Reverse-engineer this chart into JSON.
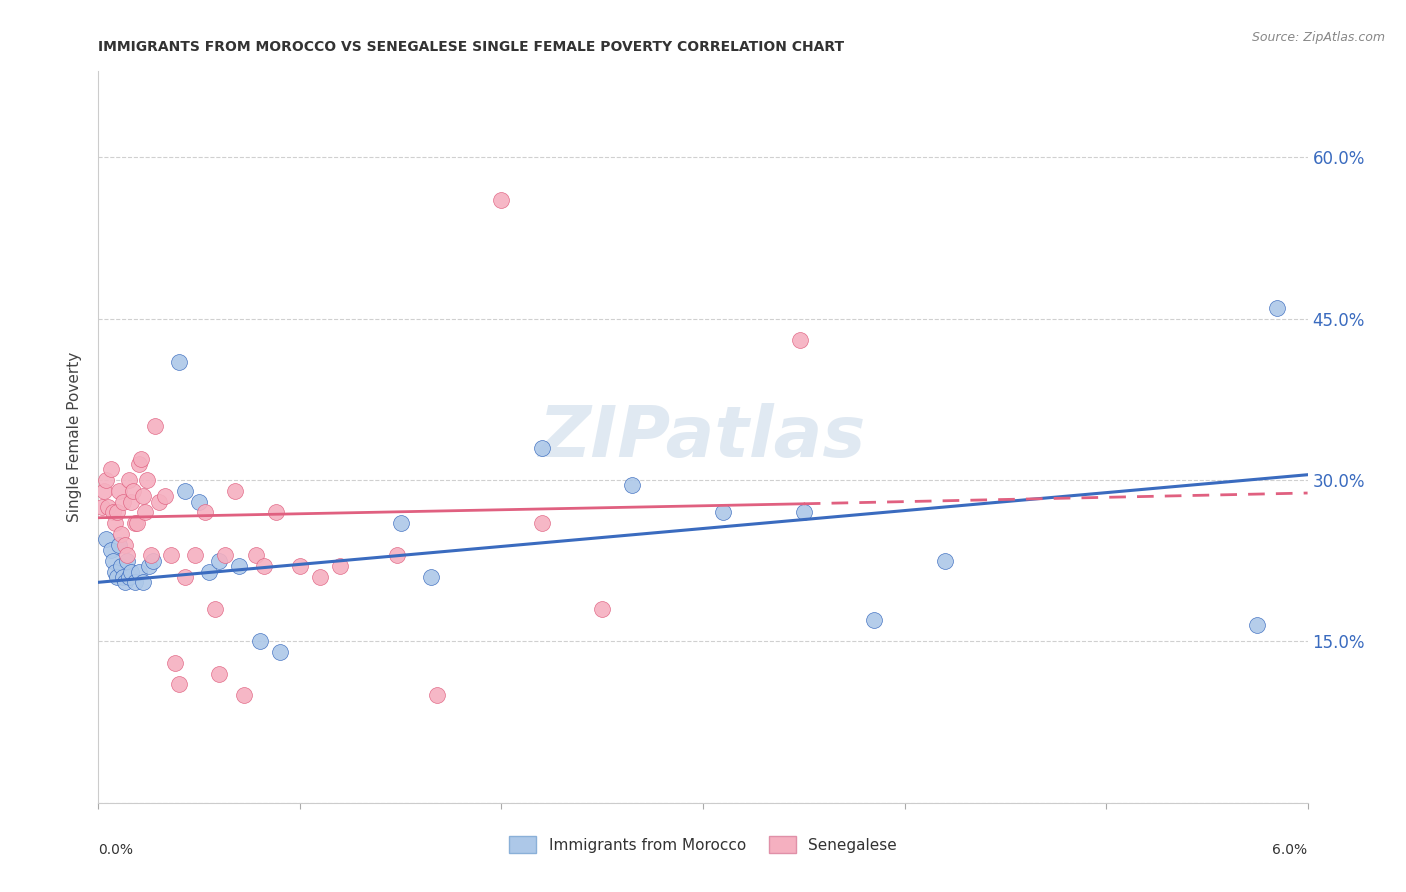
{
  "title": "IMMIGRANTS FROM MOROCCO VS SENEGALESE SINGLE FEMALE POVERTY CORRELATION CHART",
  "source": "Source: ZipAtlas.com",
  "ylabel": "Single Female Poverty",
  "xlim": [
    0.0,
    6.0
  ],
  "ylim": [
    0.0,
    68.0
  ],
  "yticks": [
    0,
    15,
    30,
    45,
    60
  ],
  "ytick_labels": [
    "",
    "15.0%",
    "30.0%",
    "45.0%",
    "60.0%"
  ],
  "bottom_legend1": "Immigrants from Morocco",
  "bottom_legend2": "Senegalese",
  "blue_color": "#adc8e8",
  "pink_color": "#f5b0c0",
  "blue_line_color": "#3a6bbf",
  "pink_line_color": "#e06080",
  "watermark": "ZIPatlas",
  "title_color": "#333333",
  "blue_scatter": [
    [
      0.04,
      24.5
    ],
    [
      0.06,
      23.5
    ],
    [
      0.07,
      22.5
    ],
    [
      0.08,
      21.5
    ],
    [
      0.09,
      21.0
    ],
    [
      0.1,
      24.0
    ],
    [
      0.11,
      22.0
    ],
    [
      0.12,
      21.0
    ],
    [
      0.13,
      20.5
    ],
    [
      0.14,
      22.5
    ],
    [
      0.15,
      21.0
    ],
    [
      0.16,
      21.5
    ],
    [
      0.18,
      20.5
    ],
    [
      0.2,
      21.5
    ],
    [
      0.22,
      20.5
    ],
    [
      0.25,
      22.0
    ],
    [
      0.27,
      22.5
    ],
    [
      0.4,
      41.0
    ],
    [
      0.43,
      29.0
    ],
    [
      0.5,
      28.0
    ],
    [
      0.55,
      21.5
    ],
    [
      0.6,
      22.5
    ],
    [
      0.7,
      22.0
    ],
    [
      0.8,
      15.0
    ],
    [
      0.9,
      14.0
    ],
    [
      1.5,
      26.0
    ],
    [
      1.65,
      21.0
    ],
    [
      2.2,
      33.0
    ],
    [
      2.65,
      29.5
    ],
    [
      3.1,
      27.0
    ],
    [
      3.5,
      27.0
    ],
    [
      3.85,
      17.0
    ],
    [
      4.2,
      22.5
    ],
    [
      5.85,
      46.0
    ],
    [
      5.75,
      16.5
    ]
  ],
  "pink_scatter": [
    [
      0.02,
      27.5
    ],
    [
      0.03,
      29.0
    ],
    [
      0.04,
      30.0
    ],
    [
      0.05,
      27.5
    ],
    [
      0.06,
      31.0
    ],
    [
      0.07,
      27.0
    ],
    [
      0.08,
      26.0
    ],
    [
      0.09,
      27.0
    ],
    [
      0.1,
      29.0
    ],
    [
      0.11,
      25.0
    ],
    [
      0.12,
      28.0
    ],
    [
      0.13,
      24.0
    ],
    [
      0.14,
      23.0
    ],
    [
      0.15,
      30.0
    ],
    [
      0.16,
      28.0
    ],
    [
      0.17,
      29.0
    ],
    [
      0.18,
      26.0
    ],
    [
      0.19,
      26.0
    ],
    [
      0.2,
      31.5
    ],
    [
      0.21,
      32.0
    ],
    [
      0.22,
      28.5
    ],
    [
      0.23,
      27.0
    ],
    [
      0.24,
      30.0
    ],
    [
      0.26,
      23.0
    ],
    [
      0.28,
      35.0
    ],
    [
      0.3,
      28.0
    ],
    [
      0.33,
      28.5
    ],
    [
      0.36,
      23.0
    ],
    [
      0.38,
      13.0
    ],
    [
      0.4,
      11.0
    ],
    [
      0.43,
      21.0
    ],
    [
      0.48,
      23.0
    ],
    [
      0.53,
      27.0
    ],
    [
      0.58,
      18.0
    ],
    [
      0.6,
      12.0
    ],
    [
      0.63,
      23.0
    ],
    [
      0.68,
      29.0
    ],
    [
      0.72,
      10.0
    ],
    [
      0.78,
      23.0
    ],
    [
      0.82,
      22.0
    ],
    [
      0.88,
      27.0
    ],
    [
      1.0,
      22.0
    ],
    [
      1.1,
      21.0
    ],
    [
      1.2,
      22.0
    ],
    [
      1.48,
      23.0
    ],
    [
      1.68,
      10.0
    ],
    [
      2.0,
      56.0
    ],
    [
      2.2,
      26.0
    ],
    [
      2.5,
      18.0
    ],
    [
      3.48,
      43.0
    ]
  ],
  "blue_line": [
    [
      0.0,
      20.5
    ],
    [
      6.0,
      30.5
    ]
  ],
  "pink_line_solid": [
    [
      0.0,
      26.5
    ],
    [
      3.5,
      27.8
    ]
  ],
  "pink_line_dashed": [
    [
      3.5,
      27.8
    ],
    [
      6.0,
      28.8
    ]
  ]
}
